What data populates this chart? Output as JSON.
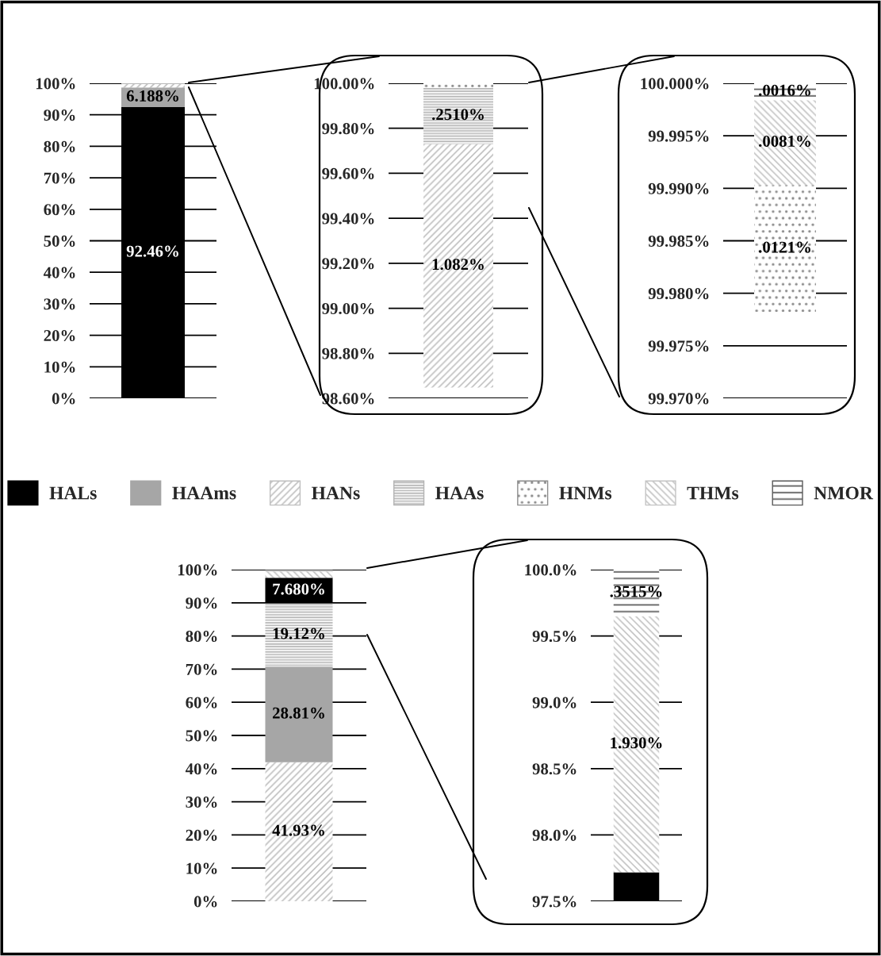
{
  "chart_data": [
    {
      "type": "bar",
      "stacked": true,
      "categories": [
        null
      ],
      "ylim": [
        0,
        100
      ],
      "grid": "y",
      "legend": "bottom",
      "yticks": [
        {
          "value": 0,
          "label": "0%"
        },
        {
          "value": 10,
          "label": "10%"
        },
        {
          "value": 20,
          "label": "20%"
        },
        {
          "value": 30,
          "label": "30%"
        },
        {
          "value": 40,
          "label": "40%"
        },
        {
          "value": 50,
          "label": "50%"
        },
        {
          "value": 60,
          "label": "60%"
        },
        {
          "value": 70,
          "label": "70%"
        },
        {
          "value": 80,
          "label": "80%"
        },
        {
          "value": 90,
          "label": "90%"
        },
        {
          "value": 100,
          "label": "100%"
        }
      ],
      "series": [
        {
          "name": "HALs",
          "color": "#000000",
          "values": [
            92.46
          ],
          "value_labels": [
            "92.46%"
          ]
        },
        {
          "name": "HAAms",
          "color": "#a6a6a6",
          "values": [
            6.188
          ],
          "value_labels": [
            "6.188%"
          ]
        },
        {
          "name": "HANs",
          "color": "#bfbfbf",
          "values": [
            1.082
          ]
        },
        {
          "name": "HAAs",
          "color": "#b3b3b3",
          "values": [
            0.251
          ]
        },
        {
          "name": "HNMs",
          "color": "#8c8c8c",
          "values": [
            0.0121
          ]
        },
        {
          "name": "THMs",
          "color": "#c4c4c4",
          "values": [
            null
          ]
        },
        {
          "name": "NMOR",
          "color": "#595959",
          "values": [
            null
          ]
        }
      ]
    },
    {
      "type": "bar",
      "categories": [
        null
      ],
      "ylim": [
        98.6,
        100
      ],
      "grid": "y",
      "yticks": [
        {
          "value": 98.6,
          "label": "98.60%"
        },
        {
          "value": 98.8,
          "label": "98.80%"
        },
        {
          "value": 99.0,
          "label": "99.00%"
        },
        {
          "value": 99.2,
          "label": "99.20%"
        },
        {
          "value": 99.4,
          "label": "99.40%"
        },
        {
          "value": 99.6,
          "label": "99.60%"
        },
        {
          "value": 99.8,
          "label": "99.80%"
        },
        {
          "value": 100,
          "label": "100.00%"
        }
      ],
      "series": [
        {
          "color": "#bfbfbf",
          "base": [
            98.648
          ],
          "values": [
            1.082
          ],
          "value_labels": [
            "1.082%"
          ]
        },
        {
          "color": "#b3b3b3",
          "base": [
            99.73
          ],
          "values": [
            0.251
          ],
          "value_labels": [
            ".2510%"
          ]
        },
        {
          "color": "#8c8c8c",
          "base": [
            99.981
          ],
          "values": [
            0.019
          ]
        }
      ]
    },
    {
      "type": "bar",
      "categories": [
        null
      ],
      "ylim": [
        99.97,
        100
      ],
      "grid": "y",
      "yticks": [
        {
          "value": 99.97,
          "label": "99.970%"
        },
        {
          "value": 99.975,
          "label": "99.975%"
        },
        {
          "value": 99.98,
          "label": "99.980%"
        },
        {
          "value": 99.985,
          "label": "99.985%"
        },
        {
          "value": 99.99,
          "label": "99.990%"
        },
        {
          "value": 99.995,
          "label": "99.995%"
        },
        {
          "value": 100,
          "label": "100.000%"
        }
      ],
      "series": [
        {
          "color": "#8c8c8c",
          "base": [
            99.9782
          ],
          "values": [
            0.0121
          ],
          "value_labels": [
            ".0121%"
          ]
        },
        {
          "color": "#c4c4c4",
          "base": [
            99.9903
          ],
          "values": [
            0.0081
          ],
          "value_labels": [
            ".0081%"
          ]
        },
        {
          "color": "#595959",
          "base": [
            99.9984
          ],
          "values": [
            0.0016
          ],
          "value_labels": [
            ".0016%"
          ]
        }
      ]
    },
    {
      "type": "bar",
      "stacked": true,
      "categories": [
        null
      ],
      "ylim": [
        0,
        100
      ],
      "grid": "y",
      "yticks": [
        {
          "value": 0,
          "label": "0%"
        },
        {
          "value": 10,
          "label": "10%"
        },
        {
          "value": 20,
          "label": "20%"
        },
        {
          "value": 30,
          "label": "30%"
        },
        {
          "value": 40,
          "label": "40%"
        },
        {
          "value": 50,
          "label": "50%"
        },
        {
          "value": 60,
          "label": "60%"
        },
        {
          "value": 70,
          "label": "70%"
        },
        {
          "value": 80,
          "label": "80%"
        },
        {
          "value": 90,
          "label": "90%"
        },
        {
          "value": 100,
          "label": "100%"
        }
      ],
      "series": [
        {
          "color": "#bfbfbf",
          "values": [
            41.93
          ],
          "value_labels": [
            "41.93%"
          ]
        },
        {
          "color": "#a6a6a6",
          "values": [
            28.81
          ],
          "value_labels": [
            "28.81%"
          ]
        },
        {
          "color": "#b3b3b3",
          "values": [
            19.12
          ],
          "value_labels": [
            "19.12%"
          ]
        },
        {
          "color": "#000000",
          "values": [
            7.68
          ],
          "value_labels": [
            "7.680%"
          ]
        },
        {
          "color": "#c4c4c4",
          "values": [
            1.93
          ]
        },
        {
          "color": "#595959",
          "values": [
            0.3515
          ]
        }
      ]
    },
    {
      "type": "bar",
      "categories": [
        null
      ],
      "ylim": [
        97.5,
        100
      ],
      "grid": "y",
      "yticks": [
        {
          "value": 97.5,
          "label": "97.5%"
        },
        {
          "value": 98.0,
          "label": "98.0%"
        },
        {
          "value": 98.5,
          "label": "98.5%"
        },
        {
          "value": 99.0,
          "label": "99.0%"
        },
        {
          "value": 99.5,
          "label": "99.5%"
        },
        {
          "value": 100,
          "label": "100.0%"
        }
      ],
      "series": [
        {
          "color": "#000000",
          "base": [
            97.5
          ],
          "values": [
            0.2185
          ]
        },
        {
          "color": "#c4c4c4",
          "base": [
            97.7185
          ],
          "values": [
            1.93
          ],
          "value_labels": [
            "1.930%"
          ]
        },
        {
          "color": "#595959",
          "base": [
            99.6485
          ],
          "values": [
            0.3515
          ],
          "value_labels": [
            ".3515%"
          ]
        }
      ]
    }
  ]
}
